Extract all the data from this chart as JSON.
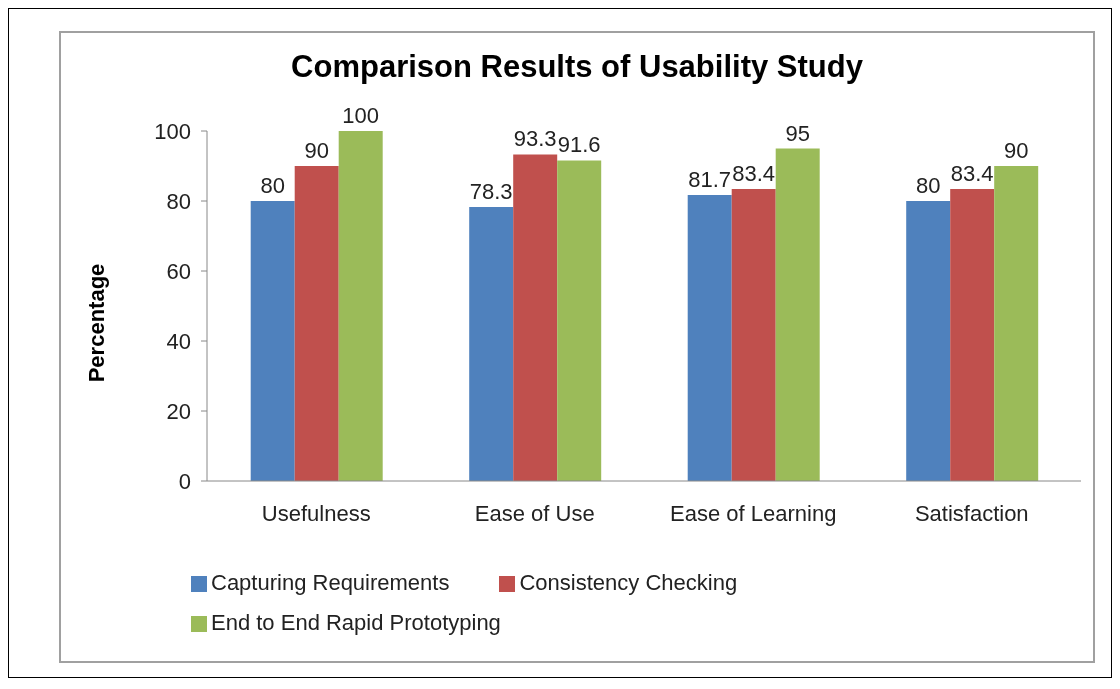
{
  "chart_data": {
    "type": "bar",
    "title": "Comparison Results of Usability Study",
    "ylabel": "Percentage",
    "categories": [
      "Usefulness",
      "Ease of Use",
      "Ease of Learning",
      "Satisfaction"
    ],
    "series": [
      {
        "name": "Capturing Requirements",
        "color": "#4f81bd",
        "values": [
          80,
          78.3,
          81.7,
          80
        ]
      },
      {
        "name": "Consistency Checking",
        "color": "#c0504d",
        "values": [
          90,
          93.3,
          83.4,
          83.4
        ]
      },
      {
        "name": "End to End Rapid Prototyping",
        "color": "#9bbb59",
        "values": [
          100,
          91.6,
          95,
          90
        ]
      }
    ],
    "ylim": [
      0,
      100
    ],
    "yticks": [
      0,
      20,
      40,
      60,
      80,
      100
    ],
    "grid": false,
    "legend": "bottom",
    "data_labels": true
  }
}
